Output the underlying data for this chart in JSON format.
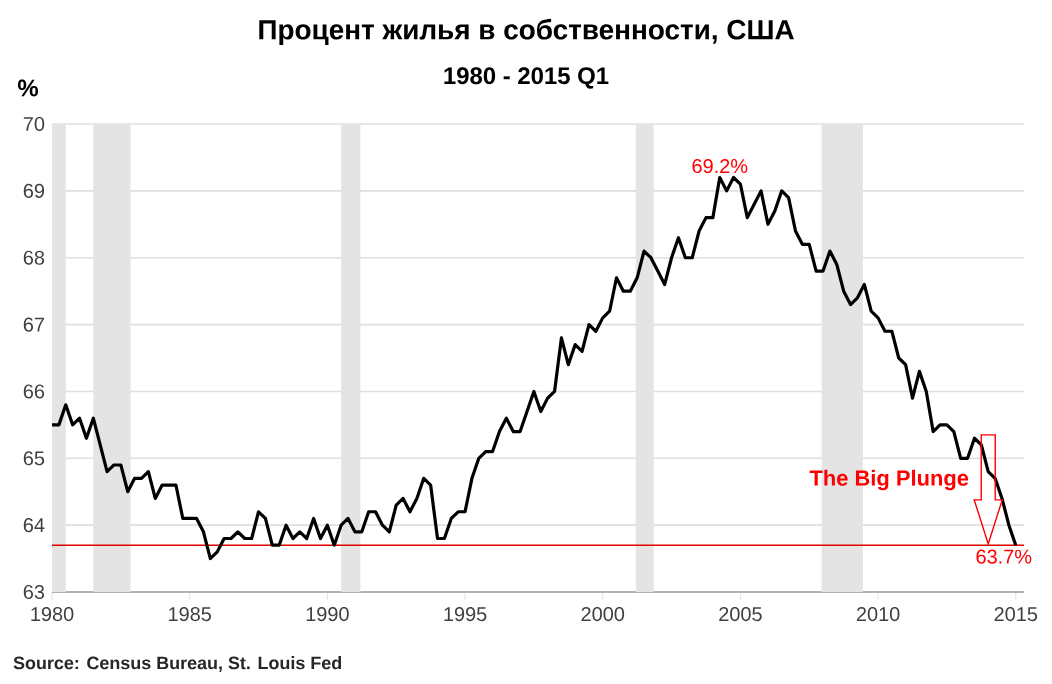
{
  "chart_data": {
    "type": "line",
    "title": "Процент жилья в собственности, США",
    "subtitle": "1980 - 2015  Q1",
    "ylabel": "%",
    "annotations": [
      {
        "text": "69.2%",
        "x": 2004.25,
        "y": 69.2
      },
      {
        "text": "63.7%",
        "x": 2015,
        "y": 63.7
      },
      "The Big Plunge",
      "Source: Census Bureau, St. Louis Fed"
    ],
    "x": [
      1980,
      1980.25,
      1980.5,
      1980.75,
      1981,
      1981.25,
      1981.5,
      1981.75,
      1982,
      1982.25,
      1982.5,
      1982.75,
      1983,
      1983.25,
      1983.5,
      1983.75,
      1984,
      1984.25,
      1984.5,
      1984.75,
      1985,
      1985.25,
      1985.5,
      1985.75,
      1986,
      1986.25,
      1986.5,
      1986.75,
      1987,
      1987.25,
      1987.5,
      1987.75,
      1988,
      1988.25,
      1988.5,
      1988.75,
      1989,
      1989.25,
      1989.5,
      1989.75,
      1990,
      1990.25,
      1990.5,
      1990.75,
      1991,
      1991.25,
      1991.5,
      1991.75,
      1992,
      1992.25,
      1992.5,
      1992.75,
      1993,
      1993.25,
      1993.5,
      1993.75,
      1994,
      1994.25,
      1994.5,
      1994.75,
      1995,
      1995.25,
      1995.5,
      1995.75,
      1996,
      1996.25,
      1996.5,
      1996.75,
      1997,
      1997.25,
      1997.5,
      1997.75,
      1998,
      1998.25,
      1998.5,
      1998.75,
      1999,
      1999.25,
      1999.5,
      1999.75,
      2000,
      2000.25,
      2000.5,
      2000.75,
      2001,
      2001.25,
      2001.5,
      2001.75,
      2002,
      2002.25,
      2002.5,
      2002.75,
      2003,
      2003.25,
      2003.5,
      2003.75,
      2004,
      2004.25,
      2004.5,
      2004.75,
      2005,
      2005.25,
      2005.5,
      2005.75,
      2006,
      2006.25,
      2006.5,
      2006.75,
      2007,
      2007.25,
      2007.5,
      2007.75,
      2008,
      2008.25,
      2008.5,
      2008.75,
      2009,
      2009.25,
      2009.5,
      2009.75,
      2010,
      2010.25,
      2010.5,
      2010.75,
      2011,
      2011.25,
      2011.5,
      2011.75,
      2012,
      2012.25,
      2012.5,
      2012.75,
      2013,
      2013.25,
      2013.5,
      2013.75,
      2014,
      2014.25,
      2014.5,
      2014.75,
      2015
    ],
    "series": [
      {
        "color": "#000000",
        "values": [
          65.5,
          65.5,
          65.8,
          65.5,
          65.6,
          65.3,
          65.6,
          65.2,
          64.8,
          64.9,
          64.9,
          64.5,
          64.7,
          64.7,
          64.8,
          64.4,
          64.6,
          64.6,
          64.6,
          64.1,
          64.1,
          64.1,
          63.9,
          63.5,
          63.6,
          63.8,
          63.8,
          63.9,
          63.8,
          63.8,
          64.2,
          64.1,
          63.7,
          63.7,
          64.0,
          63.8,
          63.9,
          63.8,
          64.1,
          63.8,
          64.0,
          63.7,
          64.0,
          64.1,
          63.9,
          63.9,
          64.2,
          64.2,
          64.0,
          63.9,
          64.3,
          64.4,
          64.2,
          64.4,
          64.7,
          64.6,
          63.8,
          63.8,
          64.1,
          64.2,
          64.2,
          64.7,
          65.0,
          65.1,
          65.1,
          65.4,
          65.6,
          65.4,
          65.4,
          65.7,
          66.0,
          65.7,
          65.9,
          66.0,
          66.8,
          66.4,
          66.7,
          66.6,
          67.0,
          66.9,
          67.1,
          67.2,
          67.7,
          67.5,
          67.5,
          67.7,
          68.1,
          68.0,
          67.8,
          67.6,
          68.0,
          68.3,
          68.0,
          68.0,
          68.4,
          68.6,
          68.6,
          69.2,
          69.0,
          69.2,
          69.1,
          68.6,
          68.8,
          69.0,
          68.5,
          68.7,
          69.0,
          68.9,
          68.4,
          68.2,
          68.2,
          67.8,
          67.8,
          68.1,
          67.9,
          67.5,
          67.3,
          67.4,
          67.6,
          67.2,
          67.1,
          66.9,
          66.9,
          66.5,
          66.4,
          65.9,
          66.3,
          66.0,
          65.4,
          65.5,
          65.5,
          65.4,
          65.0,
          65.0,
          65.3,
          65.2,
          64.8,
          64.7,
          64.4,
          64.0,
          63.7
        ]
      }
    ],
    "xlim": [
      1980,
      2015.3
    ],
    "ylim": [
      63,
      70
    ],
    "xticks": [
      1980,
      1985,
      1990,
      1995,
      2000,
      2005,
      2010,
      2015
    ],
    "yticks": [
      63,
      64,
      65,
      66,
      67,
      68,
      69,
      70
    ],
    "grid": "y",
    "marker": "none",
    "line_style": "solid",
    "ref_lines": [
      {
        "axis": "y",
        "value": 63.7,
        "label": null,
        "color": "#e00000"
      }
    ],
    "bands": [
      {
        "axis": "x",
        "from": 1980,
        "to": 1980.5,
        "label": null,
        "color": "#e4e4e4"
      },
      {
        "axis": "x",
        "from": 1981.5,
        "to": 1982.85,
        "label": null,
        "color": "#e4e4e4"
      },
      {
        "axis": "x",
        "from": 1990.5,
        "to": 1991.2,
        "label": null,
        "color": "#e4e4e4"
      },
      {
        "axis": "x",
        "from": 2001.2,
        "to": 2001.85,
        "label": null,
        "color": "#e4e4e4"
      },
      {
        "axis": "x",
        "from": 2007.95,
        "to": 2009.45,
        "label": null,
        "color": "#e4e4e4"
      }
    ]
  }
}
